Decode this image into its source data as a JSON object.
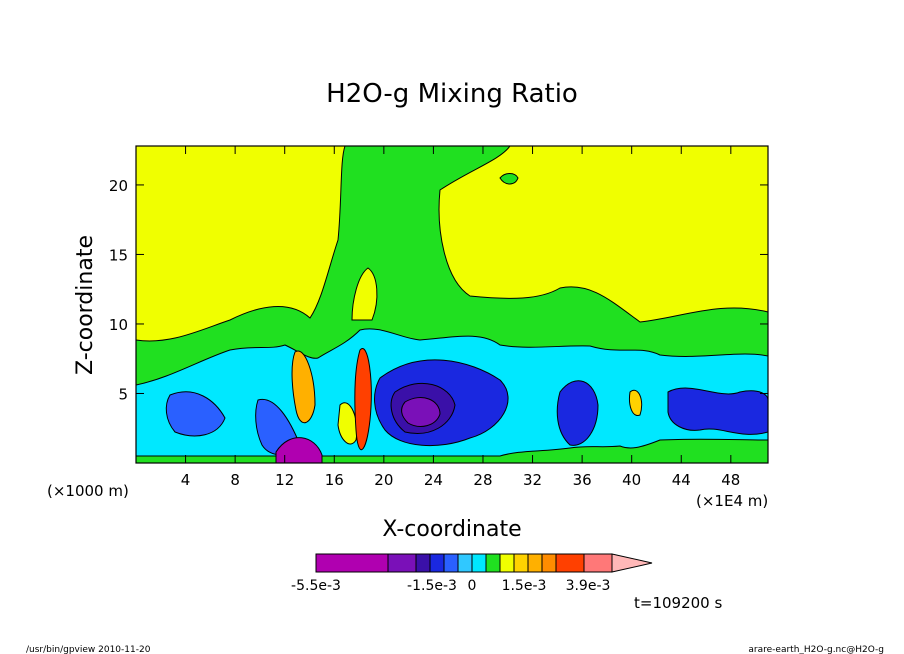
{
  "chart_data": {
    "type": "heatmap",
    "title": "H2O-g Mixing Ratio",
    "xlabel": "X-coordinate",
    "ylabel": "Z-coordinate",
    "x_unit": "(×1000 m)",
    "x_unit_secondary": "(×1E4 m)",
    "xlim": [
      0,
      51
    ],
    "ylim": [
      0,
      22.8
    ],
    "x_ticks": [
      "4",
      "8",
      "12",
      "16",
      "20",
      "24",
      "28",
      "32",
      "36",
      "40",
      "44",
      "48"
    ],
    "x_tick_values": [
      4,
      8,
      12,
      16,
      20,
      24,
      28,
      32,
      36,
      40,
      44,
      48
    ],
    "y_ticks": [
      "5",
      "10",
      "15",
      "20"
    ],
    "y_tick_values": [
      5,
      10,
      15,
      20
    ],
    "colorbar": {
      "colors": [
        "#b000b0",
        "#7a10b8",
        "#3a10a8",
        "#1a28e0",
        "#2a60ff",
        "#30c8ff",
        "#00e8ff",
        "#20e020",
        "#f0ff00",
        "#ffd200",
        "#ffb000",
        "#ff8c00",
        "#ff4000",
        "#ff7878",
        "#ffb8b8"
      ],
      "labels": [
        "-5.5e-3",
        "-1.5e-3",
        "0",
        "1.5e-3",
        "3.9e-3"
      ]
    },
    "annotations": {
      "time": "t=109200 s"
    }
  },
  "footer": {
    "left": "/usr/bin/gpview  2010-11-20",
    "right": "arare-earth_H2O-g.nc@H2O-g"
  }
}
